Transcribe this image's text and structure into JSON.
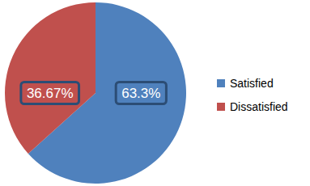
{
  "chart_data": {
    "type": "pie",
    "categories": [
      "Satisfied",
      "Dissatisfied"
    ],
    "values": [
      63.3,
      36.67
    ],
    "value_labels": [
      "63.3%",
      "36.67%"
    ],
    "colors": [
      "#4f81bd",
      "#c0504d"
    ],
    "data_labels": true,
    "legend": "right"
  }
}
